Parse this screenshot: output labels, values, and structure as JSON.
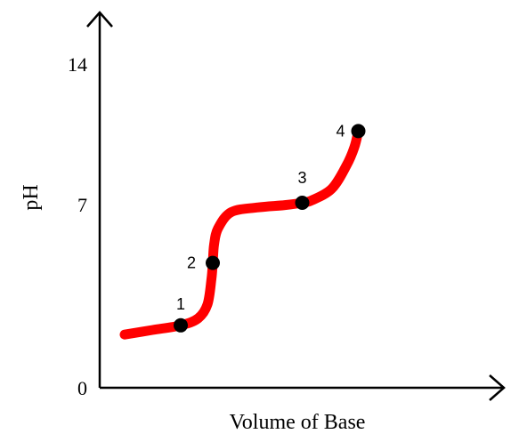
{
  "chart_data": {
    "type": "line",
    "xlabel": "Volume of Base",
    "ylabel": "pH",
    "ylim": [
      0,
      14
    ],
    "yticks": [
      "0",
      "7",
      "14"
    ],
    "grid": false,
    "line_color": "#ff0000",
    "point_color": "#000000",
    "series": [
      {
        "x": [
          0.0,
          0.21,
          0.42,
          0.55,
          0.62,
          0.65,
          0.66,
          0.67,
          0.7,
          0.8,
          1.0,
          1.2,
          1.33,
          1.4,
          1.55,
          1.66,
          1.72,
          1.75
        ],
        "y": [
          2.3,
          2.5,
          2.7,
          3.0,
          3.6,
          4.7,
          5.4,
          6.2,
          6.9,
          7.6,
          7.8,
          7.9,
          8.0,
          8.1,
          8.6,
          9.6,
          10.4,
          11.1
        ]
      }
    ],
    "points": [
      {
        "label": "1",
        "x": 0.42,
        "y": 2.7
      },
      {
        "label": "2",
        "x": 0.66,
        "y": 5.4
      },
      {
        "label": "3",
        "x": 1.33,
        "y": 8.0
      },
      {
        "label": "4",
        "x": 1.75,
        "y": 11.1
      }
    ]
  }
}
